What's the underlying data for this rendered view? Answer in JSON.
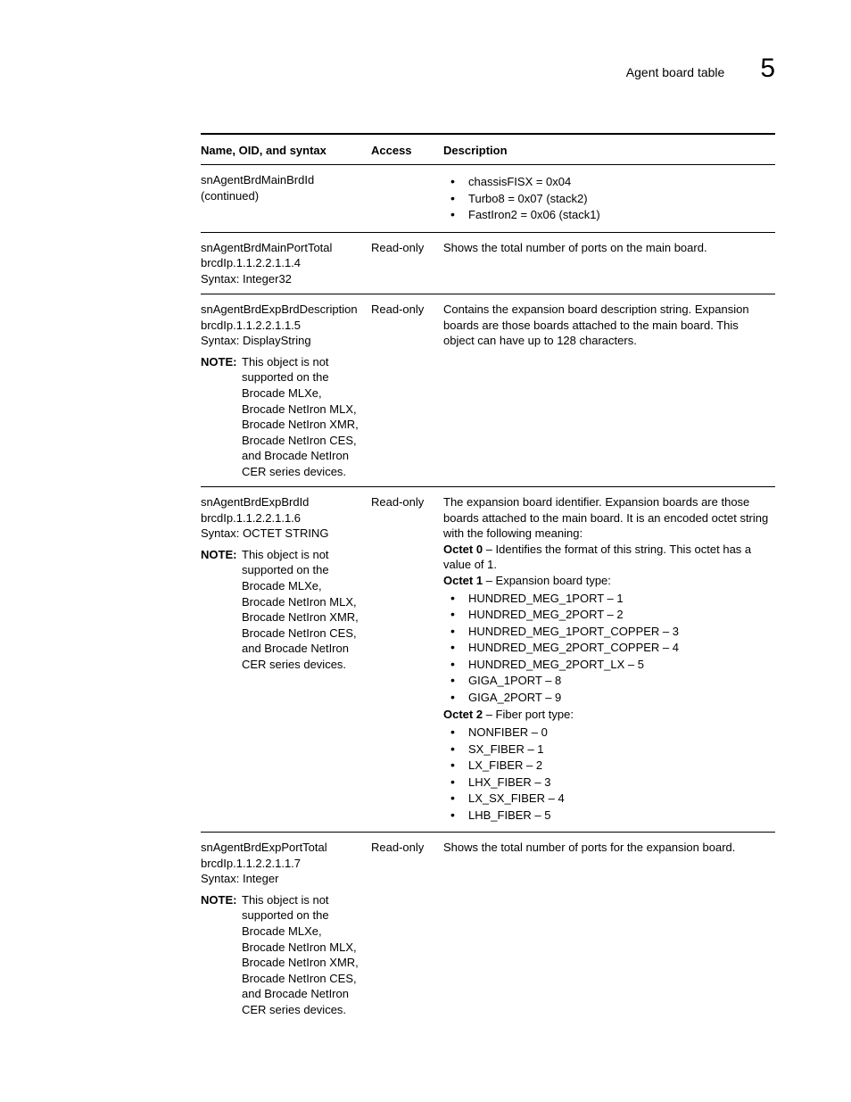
{
  "page": {
    "header_title": "Agent board table",
    "chapter_number": "5"
  },
  "table": {
    "headers": {
      "name": "Name, OID, and syntax",
      "access": "Access",
      "description": "Description"
    },
    "rows": [
      {
        "name_lines": [
          "snAgentBrdMainBrdId",
          "(continued)"
        ],
        "access": "",
        "desc_bullets": [
          "chassisFISX = 0x04",
          "Turbo8 = 0x07 (stack2)",
          "FastIron2 = 0x06 (stack1)"
        ]
      },
      {
        "name_lines": [
          "snAgentBrdMainPortTotal",
          "brcdIp.1.1.2.2.1.1.4",
          "Syntax: Integer32"
        ],
        "access": "Read-only",
        "desc_text": "Shows the total number of ports on the main board."
      },
      {
        "name_lines": [
          "snAgentBrdExpBrdDescription",
          "brcdIp.1.1.2.2.1.1.5",
          "Syntax: DisplayString"
        ],
        "note": {
          "label": "NOTE:",
          "text": "This object is not supported on the Brocade MLXe, Brocade NetIron MLX, Brocade NetIron XMR, Brocade NetIron CES, and Brocade NetIron CER series devices."
        },
        "access": "Read-only",
        "desc_text": "Contains the expansion board description string. Expansion boards are those boards attached to the main board. This object can have up to 128 characters."
      },
      {
        "name_lines": [
          "snAgentBrdExpBrdId",
          "brcdIp.1.1.2.2.1.1.6",
          "Syntax: OCTET STRING"
        ],
        "note": {
          "label": "NOTE:",
          "text": "This object is not supported on the Brocade MLXe, Brocade NetIron MLX, Brocade NetIron XMR, Brocade NetIron CES, and Brocade NetIron CER series devices."
        },
        "access": "Read-only",
        "desc_segments": [
          {
            "text": "The expansion board identifier. Expansion boards are those boards attached to the main board. It is an encoded octet string with the following meaning:"
          },
          {
            "bold": "Octet 0",
            "rest": " – Identifies the format of this string. This octet has a value of 1."
          },
          {
            "bold": "Octet 1",
            "rest": " – Expansion board type:"
          },
          {
            "bullets": [
              "HUNDRED_MEG_1PORT – 1",
              "HUNDRED_MEG_2PORT – 2",
              "HUNDRED_MEG_1PORT_COPPER – 3",
              "HUNDRED_MEG_2PORT_COPPER – 4",
              "HUNDRED_MEG_2PORT_LX – 5",
              "GIGA_1PORT – 8",
              "GIGA_2PORT – 9"
            ]
          },
          {
            "bold": "Octet 2",
            "rest": " – Fiber port type:"
          },
          {
            "bullets": [
              "NONFIBER – 0",
              "SX_FIBER – 1",
              "LX_FIBER – 2",
              "LHX_FIBER – 3",
              "LX_SX_FIBER – 4",
              "LHB_FIBER – 5"
            ]
          }
        ]
      },
      {
        "name_lines": [
          "snAgentBrdExpPortTotal",
          "brcdIp.1.1.2.2.1.1.7",
          "Syntax: Integer"
        ],
        "note": {
          "label": "NOTE:",
          "text": "This object is not supported on the Brocade MLXe, Brocade NetIron MLX, Brocade NetIron XMR, Brocade NetIron CES, and Brocade NetIron CER series devices."
        },
        "access": "Read-only",
        "desc_text": "Shows the total number of ports for the expansion board."
      }
    ]
  }
}
